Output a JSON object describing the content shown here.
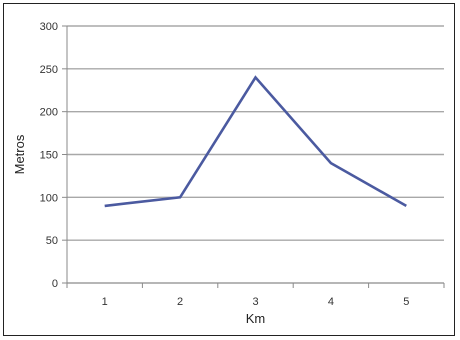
{
  "chart_data": {
    "type": "line",
    "title": "",
    "xlabel": "Km",
    "ylabel": "Metros",
    "categories": [
      "1",
      "2",
      "3",
      "4",
      "5"
    ],
    "series": [
      {
        "values": [
          90,
          100,
          240,
          140,
          90
        ],
        "color": "#4b5aa0"
      }
    ],
    "ylim": [
      0,
      300
    ],
    "yticks": [
      "0",
      "50",
      "100",
      "150",
      "200",
      "250",
      "300"
    ],
    "grid": "horizontal",
    "legend": "none",
    "colors": {
      "gridline": "#a8a8a8",
      "axis": "#8a8a8a",
      "line": "#4b5aa0"
    }
  }
}
